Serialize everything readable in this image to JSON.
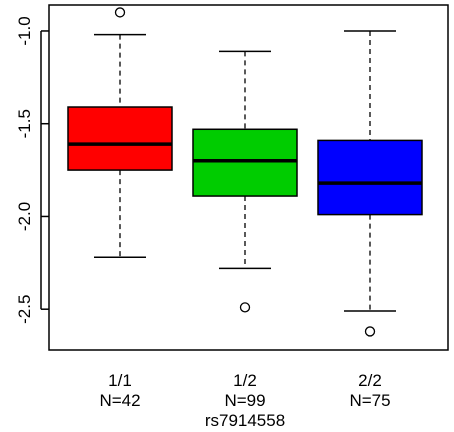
{
  "chart_data": {
    "type": "boxplot",
    "title": "",
    "xlabel": "rs7914558",
    "ylabel": "",
    "ylim": [
      -2.72,
      -0.86
    ],
    "y_ticks": [
      -1.0,
      -1.5,
      -2.0,
      -2.5
    ],
    "y_tick_labels": [
      "-1.0",
      "-1.5",
      "-2.0",
      "-2.5"
    ],
    "grid": false,
    "groups": [
      {
        "label": "1/1",
        "n_label": "N=42",
        "color": "#ff0000",
        "whisker_low": -2.22,
        "q1": -1.75,
        "median": -1.61,
        "q3": -1.41,
        "whisker_high": -1.02,
        "outliers": [
          -0.9
        ]
      },
      {
        "label": "1/2",
        "n_label": "N=99",
        "color": "#00cc00",
        "whisker_low": -2.28,
        "q1": -1.89,
        "median": -1.7,
        "q3": -1.53,
        "whisker_high": -1.11,
        "outliers": [
          -2.49
        ]
      },
      {
        "label": "2/2",
        "n_label": "N=75",
        "color": "#0000ff",
        "whisker_low": -2.51,
        "q1": -1.99,
        "median": -1.82,
        "q3": -1.59,
        "whisker_high": -1.0,
        "outliers": [
          -2.62
        ]
      }
    ]
  }
}
